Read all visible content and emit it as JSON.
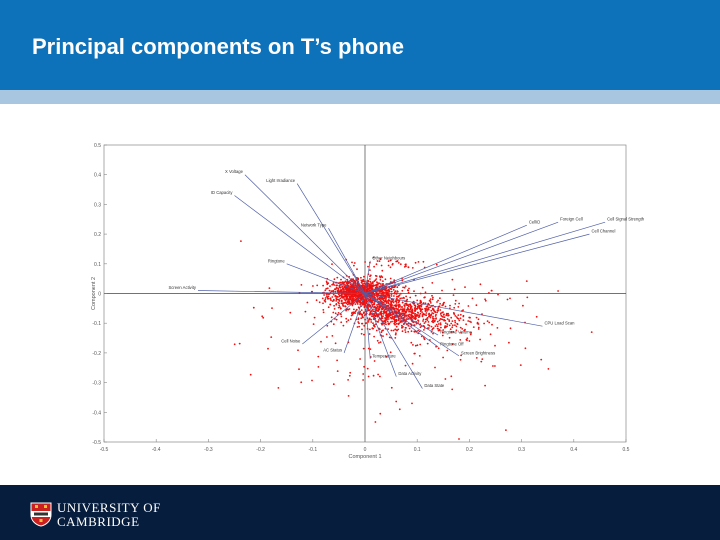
{
  "slide": {
    "title": "Principal components on T’s phone"
  },
  "footer": {
    "logo_line1": "UNIVERSITY OF",
    "logo_line2": "CAMBRIDGE"
  },
  "colors": {
    "header": "#0e72bb",
    "stripe": "#a9c6e0",
    "footer": "#061d3d",
    "points": "#ee1111",
    "vectors": "#4f5fa8"
  },
  "chart_data": {
    "type": "scatter",
    "title": "",
    "xlabel": "Component 1",
    "ylabel": "Component 2",
    "xlim": [
      -0.5,
      0.5
    ],
    "ylim": [
      -0.5,
      0.5
    ],
    "xticks": [
      "-0.5",
      "-0.4",
      "-0.3",
      "-0.2",
      "-0.1",
      "0",
      "0.1",
      "0.2",
      "0.3",
      "0.4",
      "0.5"
    ],
    "yticks": [
      "0.5",
      "0.4",
      "0.3",
      "0.2",
      "0.1",
      "0",
      "-0.1",
      "-0.2",
      "-0.3",
      "-0.4",
      "-0.5"
    ],
    "grid": false,
    "vectors": [
      {
        "label": "X Voltage",
        "x": -0.23,
        "y": 0.4
      },
      {
        "label": "Light Irradiance",
        "x": -0.13,
        "y": 0.37
      },
      {
        "label": "ID Capacity",
        "x": -0.25,
        "y": 0.33
      },
      {
        "label": "Network Type",
        "x": -0.07,
        "y": 0.22
      },
      {
        "label": "CellID",
        "x": 0.31,
        "y": 0.23
      },
      {
        "label": "Foreign Cell",
        "x": 0.37,
        "y": 0.24
      },
      {
        "label": "Cell Signal Strength",
        "x": 0.46,
        "y": 0.24
      },
      {
        "label": "Cell Channel",
        "x": 0.43,
        "y": 0.2
      },
      {
        "label": "Ringtone",
        "x": -0.15,
        "y": 0.1
      },
      {
        "label": "Other Neighbours",
        "x": 0.01,
        "y": 0.11
      },
      {
        "label": "Screen Activity",
        "x": -0.32,
        "y": 0.01
      },
      {
        "label": "CPU Load Scan",
        "x": 0.34,
        "y": -0.11
      },
      {
        "label": "Ringtone Volume",
        "x": 0.14,
        "y": -0.14
      },
      {
        "label": "Ringtone Off",
        "x": 0.14,
        "y": -0.18
      },
      {
        "label": "Cell Noise",
        "x": -0.12,
        "y": -0.17
      },
      {
        "label": "Screen Brightness",
        "x": 0.18,
        "y": -0.21
      },
      {
        "label": "AC Status",
        "x": -0.04,
        "y": -0.2
      },
      {
        "label": "Temperature",
        "x": 0.01,
        "y": -0.22
      },
      {
        "label": "Data Activity",
        "x": 0.06,
        "y": -0.28
      },
      {
        "label": "Data State",
        "x": 0.11,
        "y": -0.32
      }
    ],
    "clusters": [
      {
        "cx": 0.0,
        "cy": 0.0,
        "sx": 0.035,
        "sy": 0.025,
        "n": 900
      },
      {
        "cx": 0.055,
        "cy": -0.065,
        "sx": 0.045,
        "sy": 0.025,
        "n": 650
      },
      {
        "cx": 0.12,
        "cy": -0.09,
        "sx": 0.055,
        "sy": 0.035,
        "n": 260
      },
      {
        "cx": -0.025,
        "cy": 0.01,
        "sx": 0.02,
        "sy": 0.02,
        "n": 250
      },
      {
        "cx": 0.0,
        "cy": -0.18,
        "sx": 0.12,
        "sy": 0.1,
        "n": 110
      },
      {
        "cx": 0.17,
        "cy": -0.05,
        "sx": 0.08,
        "sy": 0.08,
        "n": 50
      },
      {
        "cx": 0.05,
        "cy": 0.1,
        "sx": 0.05,
        "sy": 0.01,
        "n": 40
      }
    ],
    "outliers": [
      {
        "x": 0.23,
        "y": -0.31
      },
      {
        "x": 0.27,
        "y": -0.46
      },
      {
        "x": 0.18,
        "y": -0.49
      },
      {
        "x": 0.2,
        "y": -0.16
      },
      {
        "x": 0.09,
        "y": -0.37
      }
    ]
  }
}
